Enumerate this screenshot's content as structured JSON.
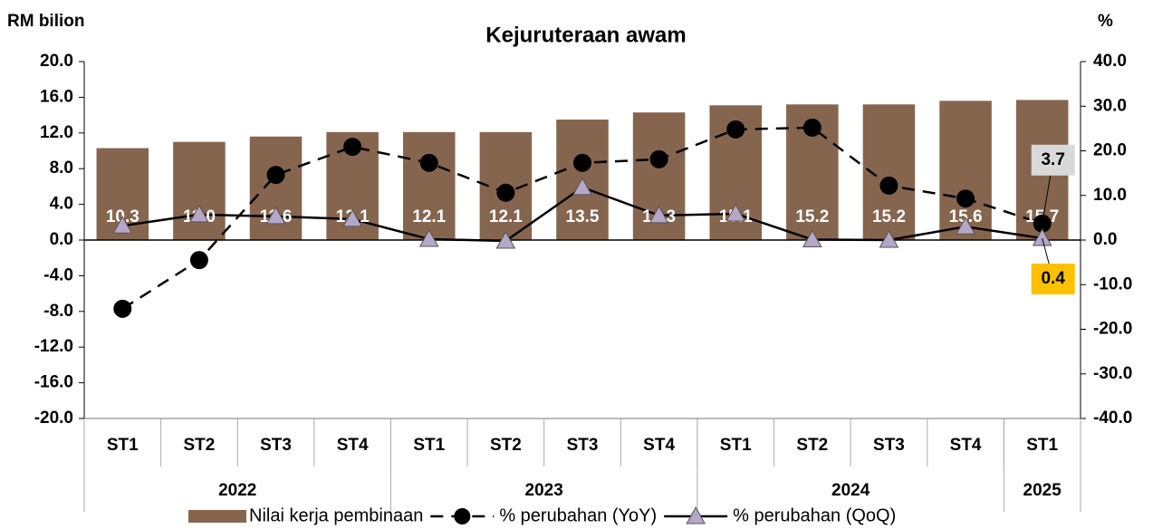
{
  "chart_data": {
    "type": "bar_line",
    "title": "Kejuruteraan awam",
    "y_label": "RM bilion",
    "y2_label": "%",
    "categories": [
      "ST1",
      "ST2",
      "ST3",
      "ST4",
      "ST1",
      "ST2",
      "ST3",
      "ST4",
      "ST1",
      "ST2",
      "ST3",
      "ST4",
      "ST1"
    ],
    "groups": [
      {
        "label": "2022",
        "span": 4
      },
      {
        "label": "2023",
        "span": 4
      },
      {
        "label": "2024",
        "span": 4
      },
      {
        "label": "2025",
        "span": 1
      }
    ],
    "ylim": [
      -20,
      20
    ],
    "yticks": [
      {
        "value": 20,
        "label": "20.0"
      },
      {
        "value": 16,
        "label": "16.0"
      },
      {
        "value": 12,
        "label": "12.0"
      },
      {
        "value": 8,
        "label": "8.0"
      },
      {
        "value": 4,
        "label": "4.0"
      },
      {
        "value": 0,
        "label": "0.0"
      },
      {
        "value": -4,
        "label": "-4.0"
      },
      {
        "value": -8,
        "label": "-8.0"
      },
      {
        "value": -12,
        "label": "-12.0"
      },
      {
        "value": -16,
        "label": "-16.0"
      },
      {
        "value": -20,
        "label": "-20.0"
      }
    ],
    "y2lim": [
      -40,
      40
    ],
    "y2ticks": [
      {
        "value": 40,
        "label": "40.0"
      },
      {
        "value": 30,
        "label": "30.0"
      },
      {
        "value": 20,
        "label": "20.0"
      },
      {
        "value": 10,
        "label": "10.0"
      },
      {
        "value": 0,
        "label": "0.0"
      },
      {
        "value": -10,
        "label": "-10.0"
      },
      {
        "value": -20,
        "label": "-20.0"
      },
      {
        "value": -30,
        "label": "-30.0"
      },
      {
        "value": -40,
        "label": "-40.0"
      }
    ],
    "series": [
      {
        "name": "Nilai kerja pembinaan",
        "kind": "bar",
        "color": "#86654f",
        "values": [
          10.3,
          11.0,
          11.6,
          12.1,
          12.1,
          12.1,
          13.5,
          14.3,
          15.1,
          15.2,
          15.2,
          15.6,
          15.7
        ],
        "value_labels": [
          "10.3",
          "11.0",
          "11.6",
          "12.1",
          "12.1",
          "12.1",
          "13.5",
          "14.3",
          "15.1",
          "15.2",
          "15.2",
          "15.6",
          "15.7"
        ]
      },
      {
        "name": "% perubahan (YoY)",
        "kind": "line",
        "dashed": true,
        "marker": "circle",
        "color": "#000000",
        "axis": "y2",
        "values": [
          -15.4,
          -4.5,
          14.6,
          20.9,
          17.3,
          10.6,
          17.3,
          18.1,
          24.8,
          25.2,
          12.2,
          9.3,
          3.7
        ]
      },
      {
        "name": "% perubahan (QoQ)",
        "kind": "line",
        "dashed": false,
        "marker": "triangle",
        "color": "#000000",
        "marker_color": "#b4a7c7",
        "axis": "y2",
        "values": [
          3.2,
          5.7,
          5.3,
          4.7,
          0.2,
          -0.2,
          11.8,
          5.5,
          5.9,
          0.1,
          0.0,
          3.0,
          0.4
        ]
      }
    ],
    "annotations": [
      {
        "text": "3.7",
        "color": "#d9d9d9"
      },
      {
        "text": "0.4",
        "color": "#ffc000"
      }
    ]
  }
}
